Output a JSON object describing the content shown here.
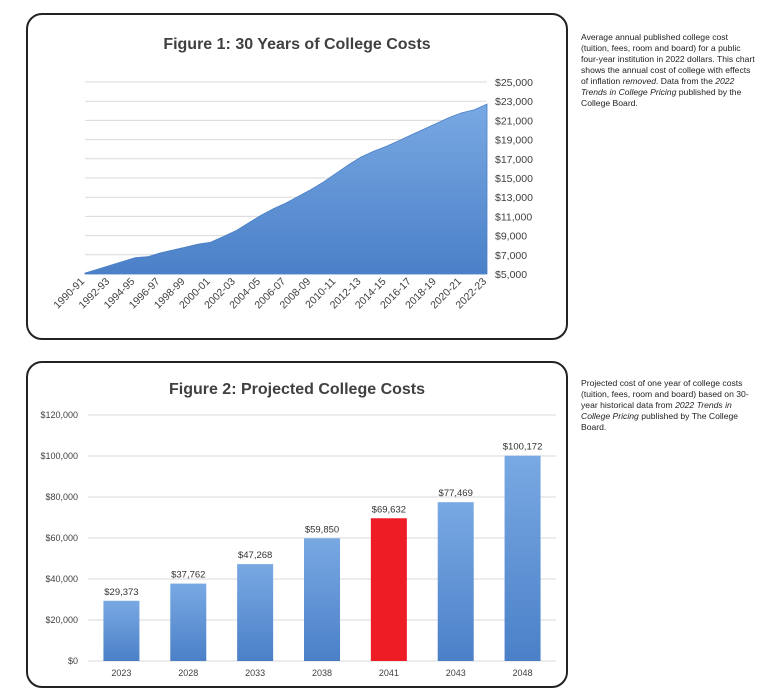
{
  "captions": {
    "fig1": {
      "p1": "Average annual published college cost (tuition, fees, room and board) for a public four-year institution in 2022 dollars. This chart shows the annual cost of college with effects of inflation ",
      "p1_em": "removed",
      "p2": ". Data from the ",
      "p2_em": "2022 Trends in College Pricing",
      "p3": " published by the College Board."
    },
    "fig2": {
      "p1": "Projected cost of one year of college costs (tuition, fees, room and board) based on 30-year historical data from ",
      "p1_em": "2022 Trends in College Pricing",
      "p2": " published by The College Board."
    }
  },
  "chart_data": [
    {
      "type": "area",
      "title": "Figure 1: 30 Years of College Costs",
      "xlabel": "",
      "ylabel": "",
      "ylim": [
        5000,
        25000
      ],
      "y_ticks": [
        "$5,000",
        "$7,000",
        "$9,000",
        "$11,000",
        "$13,000",
        "$15,000",
        "$17,000",
        "$19,000",
        "$21,000",
        "$23,000",
        "$25,000"
      ],
      "x_tick_labels": [
        "1990-91",
        "1992-93",
        "1994-95",
        "1996-97",
        "1998-99",
        "2000-01",
        "2002-03",
        "2004-05",
        "2006-07",
        "2008-09",
        "2010-11",
        "2012-13",
        "2014-15",
        "2016-17",
        "2018-19",
        "2020-21",
        "2022-23"
      ],
      "x": [
        "1990-91",
        "1991-92",
        "1992-93",
        "1993-94",
        "1994-95",
        "1995-96",
        "1996-97",
        "1997-98",
        "1998-99",
        "1999-00",
        "2000-01",
        "2001-02",
        "2002-03",
        "2003-04",
        "2004-05",
        "2005-06",
        "2006-07",
        "2007-08",
        "2008-09",
        "2009-10",
        "2010-11",
        "2011-12",
        "2012-13",
        "2013-14",
        "2014-15",
        "2015-16",
        "2016-17",
        "2017-18",
        "2018-19",
        "2019-20",
        "2020-21",
        "2021-22",
        "2022-23"
      ],
      "values": [
        5100,
        5500,
        5900,
        6300,
        6700,
        6800,
        7200,
        7500,
        7800,
        8100,
        8300,
        8900,
        9500,
        10300,
        11100,
        11800,
        12400,
        13100,
        13800,
        14600,
        15500,
        16400,
        17200,
        17800,
        18300,
        18900,
        19500,
        20100,
        20700,
        21300,
        21800,
        22100,
        22700
      ],
      "grid": true,
      "y_axis_side": "right",
      "color": "#5b8fd1"
    },
    {
      "type": "bar",
      "title": "Figure 2: Projected College Costs",
      "xlabel": "",
      "ylabel": "",
      "ylim": [
        0,
        120000
      ],
      "y_ticks": [
        "$0",
        "$20,000",
        "$40,000",
        "$60,000",
        "$80,000",
        "$100,000",
        "$120,000"
      ],
      "categories": [
        "2023",
        "2028",
        "2033",
        "2038",
        "2041",
        "2043",
        "2048"
      ],
      "values": [
        29373,
        37762,
        47268,
        59850,
        69632,
        77469,
        100172
      ],
      "data_labels": [
        "$29,373",
        "$37,762",
        "$47,268",
        "$59,850",
        "$69,632",
        "$77,469",
        "$100,172"
      ],
      "highlight_index": 4,
      "colors": {
        "bar": "#5b8fd1",
        "highlight": "#ee1c25"
      },
      "grid": true
    }
  ]
}
